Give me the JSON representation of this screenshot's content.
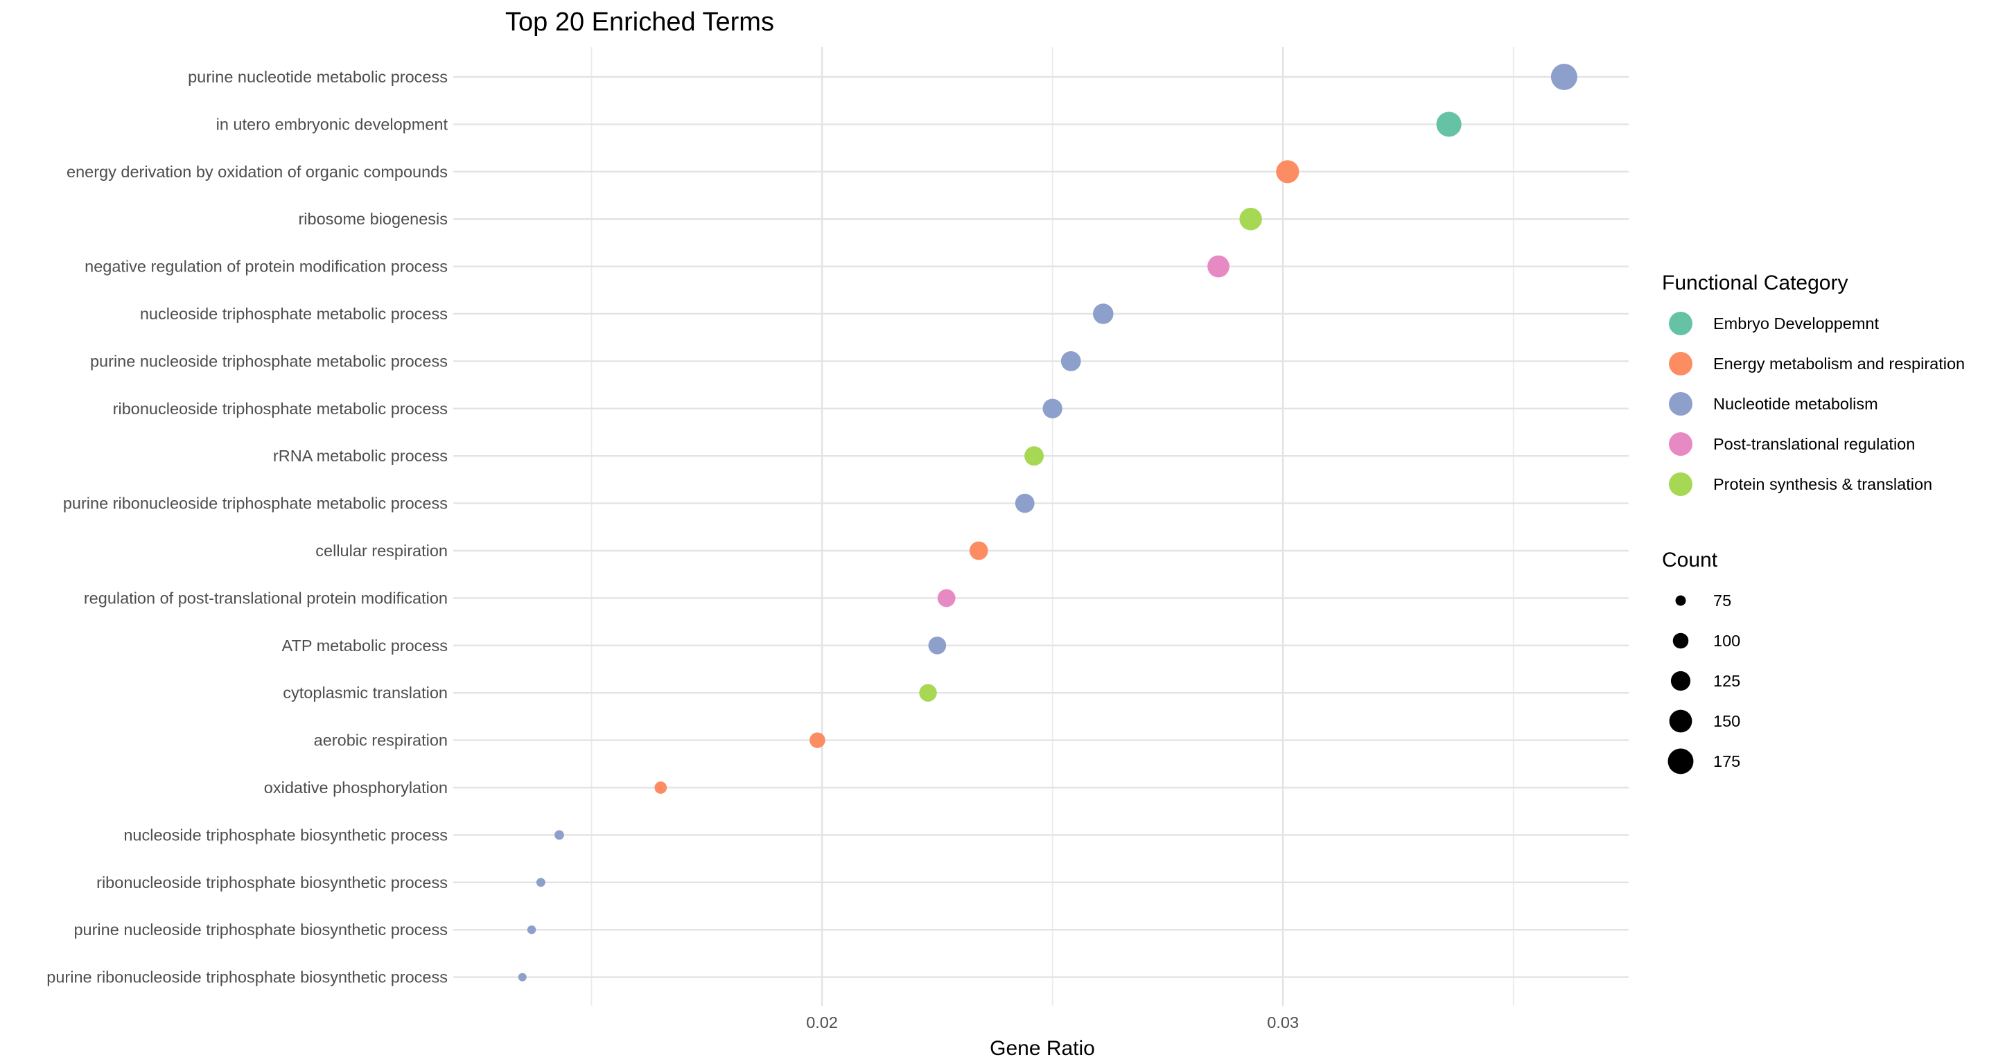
{
  "chart_data": {
    "type": "scatter",
    "title": "Top 20 Enriched Terms",
    "xlabel": "Gene Ratio",
    "ylabel": "",
    "xlim": [
      0.012,
      0.0375
    ],
    "xticks": [
      0.02,
      0.03
    ],
    "xtick_labels": [
      "0.02",
      "0.03"
    ],
    "grid": true,
    "legend_position": "right",
    "color_legend": {
      "title": "Functional Category",
      "entries": [
        {
          "name": "Embryo Developpemnt",
          "color": "#66C2A5"
        },
        {
          "name": "Energy metabolism and respiration",
          "color": "#FC8D62"
        },
        {
          "name": "Nucleotide metabolism",
          "color": "#8DA0CB"
        },
        {
          "name": "Post-translational regulation",
          "color": "#E78AC3"
        },
        {
          "name": "Protein synthesis & translation",
          "color": "#A6D854"
        }
      ]
    },
    "size_legend": {
      "title": "Count",
      "entries": [
        75,
        100,
        125,
        150,
        175
      ]
    },
    "points": [
      {
        "term": "purine nucleotide metabolic process",
        "x": 0.0361,
        "count": 182,
        "category": "Nucleotide metabolism"
      },
      {
        "term": "in utero embryonic development",
        "x": 0.0336,
        "count": 170,
        "category": "Embryo Developpemnt"
      },
      {
        "term": "energy derivation by oxidation of organic compounds",
        "x": 0.0301,
        "count": 152,
        "category": "Energy metabolism and respiration"
      },
      {
        "term": "ribosome biogenesis",
        "x": 0.0293,
        "count": 148,
        "category": "Protein synthesis & translation"
      },
      {
        "term": "negative regulation of protein modification process",
        "x": 0.0286,
        "count": 144,
        "category": "Post-translational regulation"
      },
      {
        "term": "nucleoside triphosphate metabolic process",
        "x": 0.0261,
        "count": 132,
        "category": "Nucleotide metabolism"
      },
      {
        "term": "purine nucleoside triphosphate metabolic process",
        "x": 0.0254,
        "count": 128,
        "category": "Nucleotide metabolism"
      },
      {
        "term": "ribonucleoside triphosphate metabolic process",
        "x": 0.025,
        "count": 126,
        "category": "Nucleotide metabolism"
      },
      {
        "term": "rRNA metabolic process",
        "x": 0.0246,
        "count": 124,
        "category": "Protein synthesis & translation"
      },
      {
        "term": "purine ribonucleoside triphosphate metabolic process",
        "x": 0.0244,
        "count": 123,
        "category": "Nucleotide metabolism"
      },
      {
        "term": "cellular respiration",
        "x": 0.0234,
        "count": 118,
        "category": "Energy metabolism and respiration"
      },
      {
        "term": "regulation of post-translational protein modification",
        "x": 0.0227,
        "count": 114,
        "category": "Post-translational regulation"
      },
      {
        "term": "ATP metabolic process",
        "x": 0.0225,
        "count": 113,
        "category": "Nucleotide metabolism"
      },
      {
        "term": "cytoplasmic translation",
        "x": 0.0223,
        "count": 112,
        "category": "Protein synthesis & translation"
      },
      {
        "term": "aerobic respiration",
        "x": 0.0199,
        "count": 100,
        "category": "Energy metabolism and respiration"
      },
      {
        "term": "oxidative phosphorylation",
        "x": 0.0165,
        "count": 83,
        "category": "Energy metabolism and respiration"
      },
      {
        "term": "nucleoside triphosphate biosynthetic process",
        "x": 0.0143,
        "count": 72,
        "category": "Nucleotide metabolism"
      },
      {
        "term": "ribonucleoside triphosphate biosynthetic process",
        "x": 0.0139,
        "count": 70,
        "category": "Nucleotide metabolism"
      },
      {
        "term": "purine nucleoside triphosphate biosynthetic process",
        "x": 0.0137,
        "count": 69,
        "category": "Nucleotide metabolism"
      },
      {
        "term": "purine ribonucleoside triphosphate biosynthetic process",
        "x": 0.0135,
        "count": 68,
        "category": "Nucleotide metabolism"
      }
    ]
  }
}
